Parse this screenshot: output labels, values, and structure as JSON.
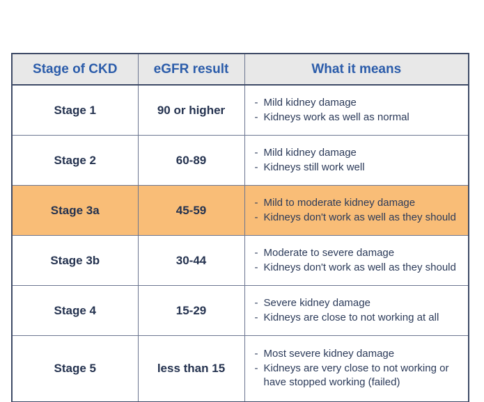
{
  "colors": {
    "page_bg": "#ffffff",
    "header_bg": "#e8e8e8",
    "header_text": "#2b5caa",
    "stage_text": "#24324f",
    "body_text": "#2b3a59",
    "highlight_bg": "#f9bd77",
    "inner_border": "#6b7590",
    "outer_border": "#3d4a66"
  },
  "table": {
    "bullet_char": "-",
    "columns": [
      "Stage of CKD",
      "eGFR result",
      "What it means"
    ],
    "rows": [
      {
        "stage": "Stage 1",
        "egfr": "90 or higher",
        "highlighted": false,
        "meaning": [
          "Mild kidney damage",
          "Kidneys work as well as normal"
        ]
      },
      {
        "stage": "Stage 2",
        "egfr": "60-89",
        "highlighted": false,
        "meaning": [
          "Mild kidney damage",
          "Kidneys still work well"
        ]
      },
      {
        "stage": "Stage 3a",
        "egfr": "45-59",
        "highlighted": true,
        "meaning": [
          "Mild to moderate kidney damage",
          "Kidneys don't work as well as they should"
        ]
      },
      {
        "stage": "Stage 3b",
        "egfr": "30-44",
        "highlighted": false,
        "meaning": [
          "Moderate to severe damage",
          "Kidneys don't work as well as they should"
        ]
      },
      {
        "stage": "Stage 4",
        "egfr": "15-29",
        "highlighted": false,
        "meaning": [
          "Severe kidney damage",
          "Kidneys are close to not working at all"
        ]
      },
      {
        "stage": "Stage 5",
        "egfr": "less than 15",
        "highlighted": false,
        "meaning": [
          "Most severe kidney damage",
          "Kidneys are very close to not working or have stopped working (failed)"
        ]
      }
    ]
  },
  "chart_data": {
    "type": "table",
    "title": "",
    "columns": [
      "Stage of CKD",
      "eGFR result",
      "What it means"
    ],
    "rows": [
      [
        "Stage 1",
        "90 or higher",
        "Mild kidney damage; Kidneys work as well as normal"
      ],
      [
        "Stage 2",
        "60-89",
        "Mild kidney damage; Kidneys still work well"
      ],
      [
        "Stage 3a",
        "45-59",
        "Mild to moderate kidney damage; Kidneys don't work as well as they should"
      ],
      [
        "Stage 3b",
        "30-44",
        "Moderate to severe damage; Kidneys don't work as well as they should"
      ],
      [
        "Stage 4",
        "15-29",
        "Severe kidney damage; Kidneys are close to not working at all"
      ],
      [
        "Stage 5",
        "less than 15",
        "Most severe kidney damage; Kidneys are very close to not working or have stopped working (failed)"
      ]
    ],
    "highlighted_row": "Stage 3a",
    "layout_hints": {
      "header_style": "blue bold text on light gray",
      "highlight_style": "orange row background",
      "grid": true
    }
  }
}
